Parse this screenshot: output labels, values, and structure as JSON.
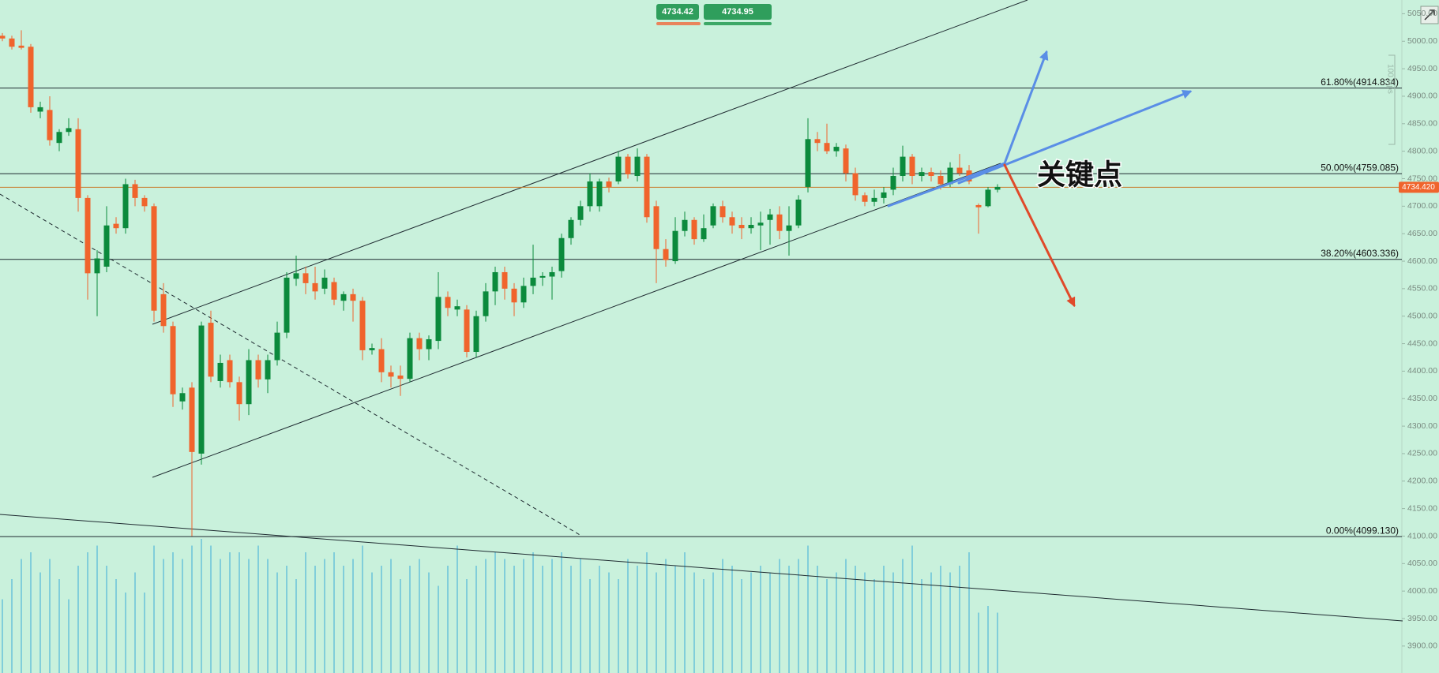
{
  "chart_data": {
    "type": "candlestick",
    "ylim": [
      3851,
      5075
    ],
    "yticks": [
      {
        "value": 3900,
        "label": "3900.00"
      },
      {
        "value": 3950,
        "label": "3950.00"
      },
      {
        "value": 4000,
        "label": "4000.00"
      },
      {
        "value": 4050,
        "label": "4050.00"
      },
      {
        "value": 4100,
        "label": "4100.00"
      },
      {
        "value": 4150,
        "label": "4150.00"
      },
      {
        "value": 4200,
        "label": "4200.00"
      },
      {
        "value": 4250,
        "label": "4250.00"
      },
      {
        "value": 4300,
        "label": "4300.00"
      },
      {
        "value": 4350,
        "label": "4350.00"
      },
      {
        "value": 4400,
        "label": "4400.00"
      },
      {
        "value": 4450,
        "label": "4450.00"
      },
      {
        "value": 4500,
        "label": "4500.00"
      },
      {
        "value": 4550,
        "label": "4550.00"
      },
      {
        "value": 4600,
        "label": "4600.00"
      },
      {
        "value": 4650,
        "label": "4650.00"
      },
      {
        "value": 4700,
        "label": "4700.00"
      },
      {
        "value": 4750,
        "label": "4750.00"
      },
      {
        "value": 4800,
        "label": "4800.00"
      },
      {
        "value": 4850,
        "label": "4850.00"
      },
      {
        "value": 4900,
        "label": "4900.00"
      },
      {
        "value": 4950,
        "label": "4950.00"
      },
      {
        "value": 5000,
        "label": "5000.00"
      },
      {
        "value": 5050,
        "label": "5050.00"
      }
    ],
    "up_color": "#0b8a3c",
    "down_color": "#f0642c",
    "volume_color": "#39acd8",
    "ohlc": [
      [
        5010,
        5015,
        5000,
        5005
      ],
      [
        5005,
        5010,
        4985,
        4990
      ],
      [
        4992,
        5020,
        4985,
        4988
      ],
      [
        4990,
        4995,
        4870,
        4880
      ],
      [
        4872,
        4890,
        4860,
        4880
      ],
      [
        4875,
        4900,
        4810,
        4820
      ],
      [
        4815,
        4840,
        4800,
        4835
      ],
      [
        4835,
        4860,
        4828,
        4842
      ],
      [
        4840,
        4860,
        4690,
        4715
      ],
      [
        4715,
        4720,
        4530,
        4578
      ],
      [
        4578,
        4620,
        4500,
        4605
      ],
      [
        4590,
        4700,
        4580,
        4665
      ],
      [
        4668,
        4680,
        4650,
        4660
      ],
      [
        4660,
        4750,
        4650,
        4740
      ],
      [
        4740,
        4748,
        4700,
        4715
      ],
      [
        4715,
        4720,
        4690,
        4700
      ],
      [
        4700,
        4705,
        4490,
        4510
      ],
      [
        4540,
        4560,
        4470,
        4482
      ],
      [
        4482,
        4490,
        4335,
        4358
      ],
      [
        4345,
        4370,
        4330,
        4360
      ],
      [
        4370,
        4380,
        4100,
        4253
      ],
      [
        4250,
        4490,
        4230,
        4483
      ],
      [
        4488,
        4510,
        4380,
        4390
      ],
      [
        4382,
        4430,
        4370,
        4415
      ],
      [
        4420,
        4430,
        4370,
        4380
      ],
      [
        4380,
        4390,
        4310,
        4340
      ],
      [
        4340,
        4440,
        4320,
        4420
      ],
      [
        4420,
        4430,
        4370,
        4385
      ],
      [
        4385,
        4430,
        4360,
        4420
      ],
      [
        4420,
        4490,
        4410,
        4470
      ],
      [
        4470,
        4580,
        4460,
        4570
      ],
      [
        4568,
        4610,
        4555,
        4578
      ],
      [
        4578,
        4590,
        4540,
        4560
      ],
      [
        4560,
        4590,
        4530,
        4545
      ],
      [
        4550,
        4585,
        4540,
        4570
      ],
      [
        4562,
        4570,
        4520,
        4530
      ],
      [
        4528,
        4545,
        4510,
        4540
      ],
      [
        4540,
        4550,
        4490,
        4528
      ],
      [
        4528,
        4535,
        4420,
        4438
      ],
      [
        4438,
        4450,
        4430,
        4442
      ],
      [
        4440,
        4460,
        4380,
        4398
      ],
      [
        4398,
        4410,
        4370,
        4390
      ],
      [
        4392,
        4410,
        4355,
        4386
      ],
      [
        4386,
        4470,
        4380,
        4460
      ],
      [
        4460,
        4470,
        4420,
        4440
      ],
      [
        4440,
        4465,
        4420,
        4458
      ],
      [
        4455,
        4580,
        4440,
        4535
      ],
      [
        4535,
        4545,
        4500,
        4515
      ],
      [
        4512,
        4530,
        4500,
        4518
      ],
      [
        4512,
        4520,
        4425,
        4435
      ],
      [
        4435,
        4510,
        4425,
        4500
      ],
      [
        4500,
        4560,
        4490,
        4545
      ],
      [
        4545,
        4590,
        4520,
        4580
      ],
      [
        4580,
        4590,
        4530,
        4550
      ],
      [
        4550,
        4560,
        4500,
        4525
      ],
      [
        4525,
        4570,
        4515,
        4555
      ],
      [
        4555,
        4630,
        4540,
        4570
      ],
      [
        4570,
        4580,
        4555,
        4573
      ],
      [
        4572,
        4590,
        4530,
        4580
      ],
      [
        4582,
        4650,
        4570,
        4642
      ],
      [
        4642,
        4680,
        4630,
        4675
      ],
      [
        4675,
        4710,
        4665,
        4700
      ],
      [
        4700,
        4760,
        4690,
        4745
      ],
      [
        4700,
        4750,
        4690,
        4745
      ],
      [
        4745,
        4752,
        4725,
        4735
      ],
      [
        4745,
        4800,
        4740,
        4790
      ],
      [
        4790,
        4795,
        4750,
        4758
      ],
      [
        4755,
        4805,
        4745,
        4790
      ],
      [
        4790,
        4795,
        4670,
        4680
      ],
      [
        4700,
        4710,
        4560,
        4622
      ],
      [
        4622,
        4640,
        4590,
        4602
      ],
      [
        4600,
        4680,
        4595,
        4655
      ],
      [
        4655,
        4690,
        4645,
        4675
      ],
      [
        4675,
        4680,
        4630,
        4640
      ],
      [
        4640,
        4685,
        4635,
        4660
      ],
      [
        4665,
        4705,
        4660,
        4700
      ],
      [
        4700,
        4710,
        4670,
        4680
      ],
      [
        4680,
        4690,
        4650,
        4665
      ],
      [
        4666,
        4680,
        4640,
        4660
      ],
      [
        4660,
        4680,
        4650,
        4666
      ],
      [
        4665,
        4690,
        4620,
        4670
      ],
      [
        4675,
        4695,
        4630,
        4685
      ],
      [
        4685,
        4700,
        4640,
        4655
      ],
      [
        4655,
        4700,
        4610,
        4665
      ],
      [
        4665,
        4720,
        4660,
        4712
      ],
      [
        4735,
        4860,
        4725,
        4822
      ],
      [
        4822,
        4835,
        4800,
        4815
      ],
      [
        4815,
        4850,
        4795,
        4800
      ],
      [
        4800,
        4815,
        4790,
        4808
      ],
      [
        4805,
        4812,
        4745,
        4760
      ],
      [
        4760,
        4770,
        4710,
        4720
      ],
      [
        4720,
        4725,
        4700,
        4708
      ],
      [
        4708,
        4730,
        4700,
        4715
      ],
      [
        4715,
        4735,
        4705,
        4725
      ],
      [
        4730,
        4770,
        4720,
        4755
      ],
      [
        4755,
        4810,
        4745,
        4790
      ],
      [
        4790,
        4795,
        4740,
        4755
      ],
      [
        4755,
        4770,
        4745,
        4762
      ],
      [
        4762,
        4770,
        4745,
        4755
      ],
      [
        4755,
        4765,
        4730,
        4740
      ],
      [
        4740,
        4780,
        4735,
        4770
      ],
      [
        4770,
        4795,
        4755,
        4760
      ],
      [
        4765,
        4775,
        4740,
        4745
      ],
      [
        4702,
        4705,
        4650,
        4698
      ],
      [
        4700,
        4735,
        4698,
        4730
      ],
      [
        4730,
        4740,
        4725,
        4735
      ]
    ],
    "volumes": [
      55,
      70,
      85,
      90,
      75,
      85,
      70,
      55,
      80,
      90,
      95,
      80,
      70,
      60,
      75,
      60,
      95,
      85,
      90,
      85,
      95,
      100,
      95,
      85,
      90,
      90,
      85,
      95,
      85,
      75,
      80,
      70,
      90,
      80,
      85,
      90,
      80,
      85,
      95,
      75,
      80,
      85,
      70,
      80,
      85,
      75,
      65,
      80,
      95,
      70,
      80,
      85,
      90,
      85,
      80,
      85,
      90,
      80,
      85,
      90,
      80,
      85,
      70,
      80,
      75,
      70,
      85,
      80,
      90,
      75,
      85,
      80,
      90,
      75,
      70,
      75,
      85,
      80,
      70,
      75,
      80,
      75,
      85,
      80,
      85,
      95,
      80,
      70,
      75,
      85,
      80,
      75,
      70,
      80,
      75,
      85,
      95,
      70,
      75,
      80,
      75,
      80,
      90,
      45,
      50,
      45
    ],
    "levels": [
      {
        "value": 4914.834,
        "label": "61.80%(4914.834)"
      },
      {
        "value": 4759.085,
        "label": "50.00%(4759.085)"
      },
      {
        "value": 4603.336,
        "label": "38.20%(4603.336)"
      },
      {
        "value": 4099.13,
        "label": "0.00%(4099.130)"
      }
    ],
    "current_price": {
      "value": 4734.42,
      "label": "4734.420"
    },
    "bid": 4734.42,
    "ask": 4734.95,
    "annotation": "关键点",
    "ruler_label": "100 pips"
  }
}
